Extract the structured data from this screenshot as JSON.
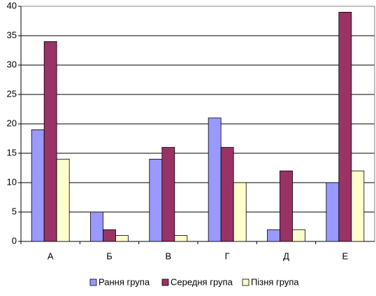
{
  "chart_data": {
    "type": "bar",
    "categories": [
      "А",
      "Б",
      "В",
      "Г",
      "Д",
      "Е"
    ],
    "series": [
      {
        "name": "Рання група",
        "color": "#9999ff",
        "values": [
          19,
          5,
          14,
          21,
          2,
          10
        ]
      },
      {
        "name": "Середня група",
        "color": "#993366",
        "values": [
          34,
          2,
          16,
          16,
          12,
          39
        ]
      },
      {
        "name": "Пізня група",
        "color": "#ffffcc",
        "values": [
          14,
          1,
          1,
          10,
          2,
          12
        ]
      }
    ],
    "ylim": [
      0,
      40
    ],
    "yticks": [
      0,
      5,
      10,
      15,
      20,
      25,
      30,
      35,
      40
    ],
    "grid": true,
    "legend": "bottom"
  }
}
